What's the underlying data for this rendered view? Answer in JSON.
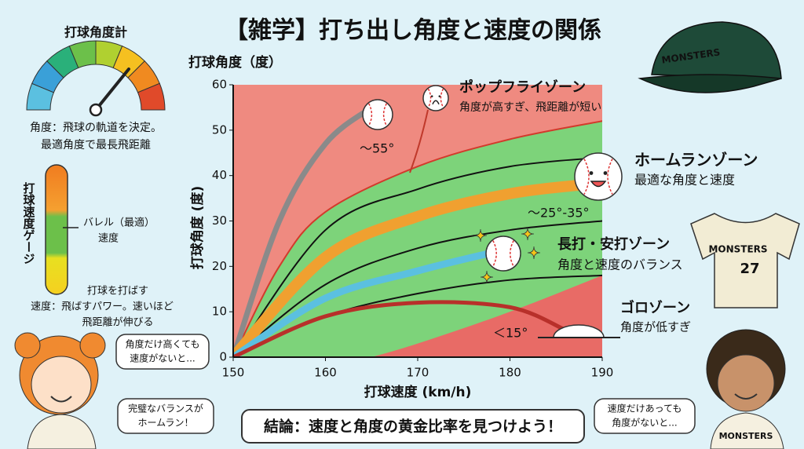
{
  "angle_meter": {
    "title": "打球角度計",
    "desc": [
      "角度：飛球の軌道を決定。",
      "最適角度で最長飛距離"
    ]
  },
  "speed_gauge": {
    "title": "打球速度ゲージ",
    "barrel": [
      "バレル（最適）",
      "速度"
    ],
    "low": "打球を打ばす",
    "desc": [
      "速度：飛ばすパワー。速いほど",
      "飛距離が伸びる"
    ]
  },
  "chart_data": {
    "type": "line",
    "title": "【雑学】打ち出し角度と速度の関係",
    "xlabel": "打球速度 (km/h)",
    "ylabel": "打球角度 (度)",
    "ylabel_top": "打球角度（度）",
    "xlim": [
      150,
      190
    ],
    "ylim": [
      0,
      60
    ],
    "xticks": [
      150,
      160,
      170,
      180,
      190
    ],
    "yticks": [
      0,
      10,
      20,
      30,
      40,
      50,
      60
    ],
    "background": "#ef8a80",
    "series": [
      {
        "color": "#7dd37a",
        "fill": true,
        "x": [
          150,
          155,
          160,
          170,
          180,
          190
        ],
        "values": [
          0,
          20,
          32,
          42,
          48,
          52
        ]
      },
      {
        "color": "#e86b66",
        "fill": true,
        "x": [
          165,
          170,
          180,
          190
        ],
        "values": [
          0,
          3,
          10,
          18
        ]
      },
      {
        "color": "#d33a2c",
        "width": 2,
        "x": [
          150,
          155,
          160,
          170,
          180,
          190
        ],
        "values": [
          0,
          20,
          32,
          42,
          48,
          52
        ]
      },
      {
        "color": "#111111",
        "width": 2,
        "x": [
          150,
          160,
          170,
          180,
          190
        ],
        "values": [
          0,
          28,
          37,
          42,
          44
        ]
      },
      {
        "color": "#111111",
        "width": 2,
        "x": [
          150,
          160,
          170,
          180,
          190
        ],
        "values": [
          0,
          16,
          24,
          28,
          30
        ]
      },
      {
        "color": "#111111",
        "width": 2,
        "x": [
          150,
          160,
          170,
          180,
          190
        ],
        "values": [
          0,
          9,
          14,
          17,
          18
        ]
      },
      {
        "color": "#8a8a8a",
        "width": 7,
        "x": [
          150,
          155,
          160,
          165
        ],
        "values": [
          0,
          30,
          47,
          55
        ]
      },
      {
        "color": "#f0a030",
        "width": 14,
        "x": [
          150,
          160,
          170,
          180,
          188
        ],
        "values": [
          0,
          22,
          31,
          36,
          38
        ]
      },
      {
        "color": "#5bc0e0",
        "width": 9,
        "x": [
          150,
          160,
          170,
          178
        ],
        "values": [
          0,
          13,
          19,
          23
        ]
      },
      {
        "color": "#b8302a",
        "width": 5,
        "x": [
          150,
          160,
          170,
          180,
          186
        ],
        "values": [
          0,
          9,
          12,
          11,
          6
        ]
      }
    ],
    "annotations": [
      "〜55°",
      "ポップフライゾーン",
      "角度が高すぎ、飛距離が短い",
      "ホームランゾーン",
      "最適な角度と速度",
      "〜25°-35°",
      "長打・安打ゾーン",
      "角度と速度のバランス",
      "ゴロゾーン",
      "角度が低すぎ",
      "＜15°"
    ]
  },
  "bubbles": [
    [
      "角度だけ高くても",
      "速度がないと..."
    ],
    [
      "完璧なバランスが",
      "ホームラン！"
    ],
    [
      "速度だけあっても",
      "角度がないと..."
    ]
  ],
  "conclusion": "結論：速度と角度の黄金比率を見つけよう！",
  "cap_text": "MONSTERS",
  "jersey": {
    "text": "MONSTERS",
    "number": "27"
  },
  "shirt_text": "MONSTERS"
}
